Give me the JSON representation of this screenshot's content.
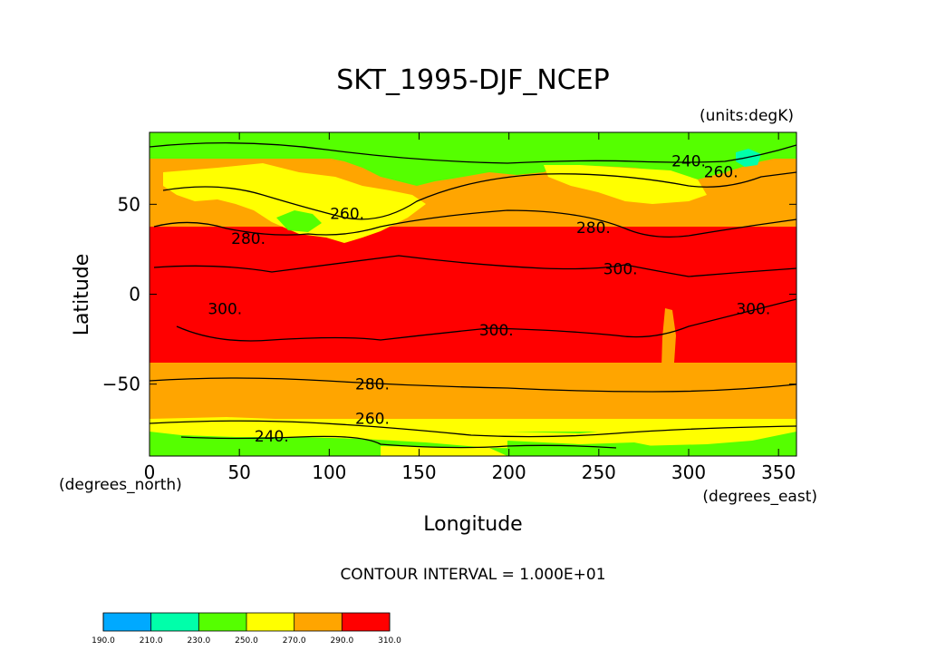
{
  "chart_data": {
    "type": "contour-map",
    "title": "SKT_1995-DJF_NCEP",
    "units_label": "(units:degK)",
    "xlabel": "Longitude",
    "ylabel": "Latitude",
    "x_units_label": "(degrees_east)",
    "y_units_label": "(degrees_north)",
    "xlim": [
      0,
      360
    ],
    "ylim": [
      -90,
      90
    ],
    "x_ticks": [
      0,
      50,
      100,
      150,
      200,
      250,
      300,
      350
    ],
    "y_ticks": [
      50,
      0,
      -50
    ],
    "x_tick_labels": [
      "0",
      "50",
      "100",
      "150",
      "200",
      "250",
      "300",
      "350"
    ],
    "y_tick_labels": [
      "50",
      "0",
      "−50"
    ],
    "contour_interval_label": "CONTOUR INTERVAL = 1.000E+01",
    "contour_labels": [
      {
        "text": "240.",
        "lon": 300,
        "lat": 74
      },
      {
        "text": "260.",
        "lon": 318,
        "lat": 68
      },
      {
        "text": "260.",
        "lon": 110,
        "lat": 45
      },
      {
        "text": "280.",
        "lon": 55,
        "lat": 31
      },
      {
        "text": "280.",
        "lon": 247,
        "lat": 37
      },
      {
        "text": "300.",
        "lon": 262,
        "lat": 14
      },
      {
        "text": "300.",
        "lon": 42,
        "lat": -8
      },
      {
        "text": "300.",
        "lon": 193,
        "lat": -20
      },
      {
        "text": "300.",
        "lon": 336,
        "lat": -8
      },
      {
        "text": "280.",
        "lon": 124,
        "lat": -50
      },
      {
        "text": "260.",
        "lon": 124,
        "lat": -69
      },
      {
        "text": "240.",
        "lon": 68,
        "lat": -79
      }
    ],
    "colorbar": {
      "ticks": [
        "190.0",
        "210.0",
        "230.0",
        "250.0",
        "270.0",
        "290.0",
        "310.0"
      ],
      "colors": [
        "#00a9ff",
        "#00ffaa",
        "#55ff00",
        "#ffff00",
        "#ffa500",
        "#ff0000"
      ]
    },
    "level_colors": {
      "lt210": "#00a9ff",
      "210_230": "#00ffaa",
      "230_250": "#55ff00",
      "250_270": "#ffff00",
      "270_290": "#ffa500",
      "gt290": "#ff0000"
    }
  }
}
